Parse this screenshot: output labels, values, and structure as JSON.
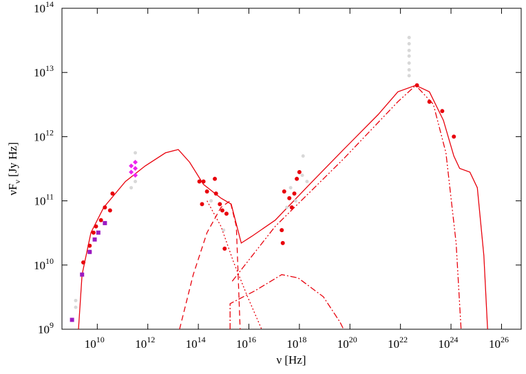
{
  "chart_data": {
    "type": "scatter",
    "x_label": "ν [Hz]",
    "y_label": {
      "main": "νF",
      "sub": "ν",
      "unit": " [Jy Hz]"
    },
    "xscale": "log",
    "yscale": "log",
    "xlim": [
      400000000.0,
      6e+26
    ],
    "ylim": [
      1000000000.0,
      100000000000000.0
    ],
    "xticks": [
      {
        "value": 10000000000.0,
        "label": "10",
        "exponent": "10"
      },
      {
        "value": 1000000000000.0,
        "label": "10",
        "exponent": "12"
      },
      {
        "value": 100000000000000.0,
        "label": "10",
        "exponent": "14"
      },
      {
        "value": 1e+16,
        "label": "10",
        "exponent": "16"
      },
      {
        "value": 1e+18,
        "label": "10",
        "exponent": "18"
      },
      {
        "value": 1e+20,
        "label": "10",
        "exponent": "20"
      },
      {
        "value": 1e+22,
        "label": "10",
        "exponent": "22"
      },
      {
        "value": 1e+24,
        "label": "10",
        "exponent": "24"
      },
      {
        "value": 1e+26,
        "label": "10",
        "exponent": "26"
      }
    ],
    "yticks": [
      {
        "value": 1000000000.0,
        "label": "10",
        "exponent": "9"
      },
      {
        "value": 10000000000.0,
        "label": "10",
        "exponent": "10"
      },
      {
        "value": 100000000000.0,
        "label": "10",
        "exponent": "11"
      },
      {
        "value": 1000000000000.0,
        "label": "10",
        "exponent": "12"
      },
      {
        "value": 10000000000000.0,
        "label": "10",
        "exponent": "13"
      },
      {
        "value": 100000000000000.0,
        "label": "10",
        "exponent": "14"
      }
    ],
    "grid": false,
    "series": [
      {
        "kind": "line",
        "dash": "solid",
        "color": "#e8000b",
        "x": [
          1800000000.0,
          2500000000.0,
          5600000000.0,
          18000000000.0,
          130000000000.0,
          790000000000.0,
          5000000000000.0,
          16000000000000.0,
          45000000000000.0,
          160000000000000.0,
          790000000000000.0,
          2000000000000000.0,
          5000000000000000.0,
          1.3e+16,
          1.1e+17,
          2.5e+18,
          5.6e+19,
          1.3e+21,
          7.9e+21,
          4e+22,
          1.4e+23,
          5e+23,
          1.3e+24,
          2.2e+24,
          5.6e+24,
          1.1e+25,
          2e+25,
          2.8e+25
        ],
        "values": [
          1000000000.0,
          7100000000.0,
          32000000000.0,
          79000000000.0,
          200000000000.0,
          350000000000.0,
          560000000000.0,
          630000000000.0,
          400000000000.0,
          180000000000.0,
          110000000000.0,
          89000000000.0,
          22000000000.0,
          28000000000.0,
          50000000000.0,
          180000000000.0,
          630000000000.0,
          2200000000000.0,
          5000000000000.0,
          6300000000000.0,
          5000000000000.0,
          1800000000000.0,
          500000000000.0,
          320000000000.0,
          280000000000.0,
          160000000000.0,
          14000000000.0,
          1000000000.0
        ]
      },
      {
        "kind": "line",
        "dash": "dashed",
        "color": "#e8000b",
        "x": [
          18000000000000.0,
          63000000000000.0,
          220000000000000.0,
          790000000000000.0,
          1800000000000000.0,
          3200000000000000.0,
          4500000000000000.0
        ],
        "values": [
          1000000000.0,
          7100000000.0,
          32000000000.0,
          79000000000.0,
          100000000000.0,
          40000000000.0,
          1000000000.0
        ]
      },
      {
        "kind": "line",
        "dash": "dotted",
        "color": "#e8000b",
        "x": [
          220000000000000.0,
          790000000000000.0,
          2500000000000000.0,
          8900000000000000.0,
          3.2e+16
        ],
        "values": [
          100000000000.0,
          40000000000.0,
          11000000000.0,
          3200000000.0,
          1000000000.0
        ]
      },
      {
        "kind": "line",
        "dash": "dash-dot-dot",
        "color": "#e8000b",
        "x": [
          2200000000000000.0,
          1.1e+17,
          5.6e+19,
          7.9e+21,
          4e+22,
          2e+23,
          6.3e+23,
          1.6e+24,
          2.5e+24
        ],
        "values": [
          5600000000.0,
          40000000000.0,
          450000000000.0,
          3500000000000.0,
          6300000000000.0,
          3200000000000.0,
          560000000000.0,
          22000000000.0,
          1000000000.0
        ]
      },
      {
        "kind": "line",
        "dash": "dash-dot",
        "color": "#e8000b",
        "x": [
          1800000000000000.0,
          1800000000000000.0,
          1.8e+16,
          2e+17,
          8.9e+17,
          8.9e+18,
          4e+19,
          5.6e+19
        ],
        "values": [
          1000000000.0,
          2500000000.0,
          4000000000.0,
          7100000000.0,
          6300000000.0,
          3200000000.0,
          1300000000.0,
          1000000000.0
        ]
      },
      {
        "kind": "points",
        "marker": "circle",
        "color": "#d8d8d8",
        "x": [
          1400000000.0,
          1400000000.0,
          320000000000.0,
          320000000000.0,
          220000000000.0,
          2.2e+22,
          2.2e+22,
          2.2e+22,
          2.2e+22,
          2.2e+22,
          2.2e+22,
          2.2e+22,
          3.2e+17,
          4.5e+17,
          7.1e+17,
          1.3e+18,
          1.4e+18,
          2e+18,
          320000000000000.0,
          1000000000000000.0
        ],
        "values": [
          2800000000.0,
          2200000000.0,
          560000000000.0,
          200000000000.0,
          160000000000.0,
          35000000000000.0,
          28000000000000.0,
          22000000000000.0,
          18000000000000.0,
          14000000000000.0,
          11000000000000.0,
          8900000000000.0,
          79000000000.0,
          160000000000.0,
          100000000000.0,
          250000000000.0,
          500000000000.0,
          200000000000.0,
          100000000000.0,
          35000000000.0
        ]
      },
      {
        "kind": "points",
        "marker": "circle",
        "color": "#e8000b",
        "x": [
          2800000000.0,
          5000000000.0,
          5000000000.0,
          7100000000.0,
          8900000000.0,
          14000000000.0,
          20000000000.0,
          32000000000.0,
          40000000000.0,
          110000000000000.0,
          160000000000000.0,
          220000000000000.0,
          140000000000000.0,
          450000000000000.0,
          500000000000000.0,
          710000000000000.0,
          890000000000000.0,
          1300000000000000.0,
          1100000000000000.0,
          2e+17,
          2.2e+17,
          2.5e+17,
          4e+17,
          5e+17,
          6.3e+17,
          7.9e+17,
          1e+18,
          4.5e+22,
          1.4e+23,
          4.5e+23,
          1.3e+24
        ],
        "values": [
          11000000000.0,
          16000000000.0,
          20000000000.0,
          32000000000.0,
          40000000000.0,
          50000000000.0,
          79000000000.0,
          71000000000.0,
          130000000000.0,
          200000000000.0,
          200000000000.0,
          140000000000.0,
          89000000000.0,
          220000000000.0,
          130000000000.0,
          89000000000.0,
          71000000000.0,
          63000000000.0,
          18000000000.0,
          35000000000.0,
          22000000000.0,
          140000000000.0,
          110000000000.0,
          79000000000.0,
          130000000000.0,
          220000000000.0,
          280000000000.0,
          6300000000000.0,
          3500000000000.0,
          2500000000000.0,
          1000000000000.0
        ]
      },
      {
        "kind": "points",
        "marker": "square",
        "color": "#9b1bc2",
        "x": [
          1000000000.0,
          2500000000.0,
          5000000000.0,
          7900000000.0,
          11000000000.0,
          20000000000.0
        ],
        "values": [
          1400000000.0,
          7100000000.0,
          16000000000.0,
          25000000000.0,
          32000000000.0,
          45000000000.0
        ]
      },
      {
        "kind": "points",
        "marker": "diamond",
        "color": "#ee22ee",
        "x": [
          220000000000.0,
          220000000000.0,
          320000000000.0,
          320000000000.0,
          320000000000.0
        ],
        "values": [
          350000000000.0,
          280000000000.0,
          400000000000.0,
          320000000000.0,
          250000000000.0
        ]
      }
    ]
  }
}
